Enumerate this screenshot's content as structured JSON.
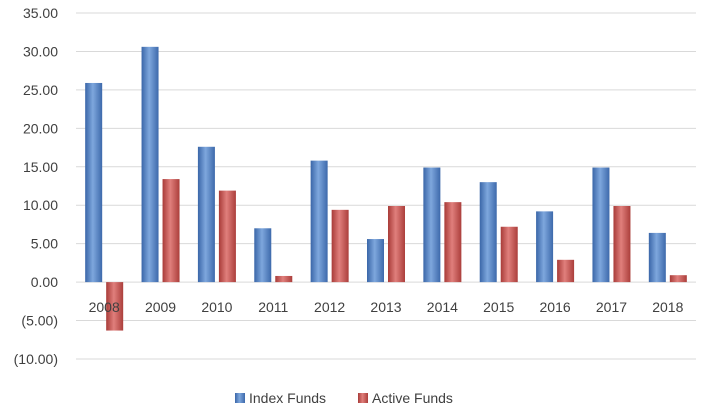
{
  "chart_data": {
    "type": "bar",
    "categories": [
      "2008",
      "2009",
      "2010",
      "2011",
      "2012",
      "2013",
      "2014",
      "2015",
      "2016",
      "2017",
      "2018"
    ],
    "series": [
      {
        "name": "Index Funds",
        "color": "#4F81BD",
        "values": [
          25.9,
          30.6,
          17.6,
          7.0,
          15.8,
          5.6,
          14.9,
          13.0,
          9.2,
          14.9,
          6.4
        ]
      },
      {
        "name": "Active Funds",
        "color": "#C0504D",
        "values": [
          -6.3,
          13.4,
          11.9,
          0.8,
          9.4,
          9.9,
          10.4,
          7.2,
          2.9,
          9.9,
          0.9
        ]
      }
    ],
    "yticks": [
      "35.00",
      "30.00",
      "25.00",
      "20.00",
      "15.00",
      "10.00",
      "5.00",
      "0.00",
      "(5.00)",
      "(10.00)"
    ],
    "ylim": [
      -10,
      35
    ],
    "grid": true,
    "legend": "bottom-center"
  }
}
